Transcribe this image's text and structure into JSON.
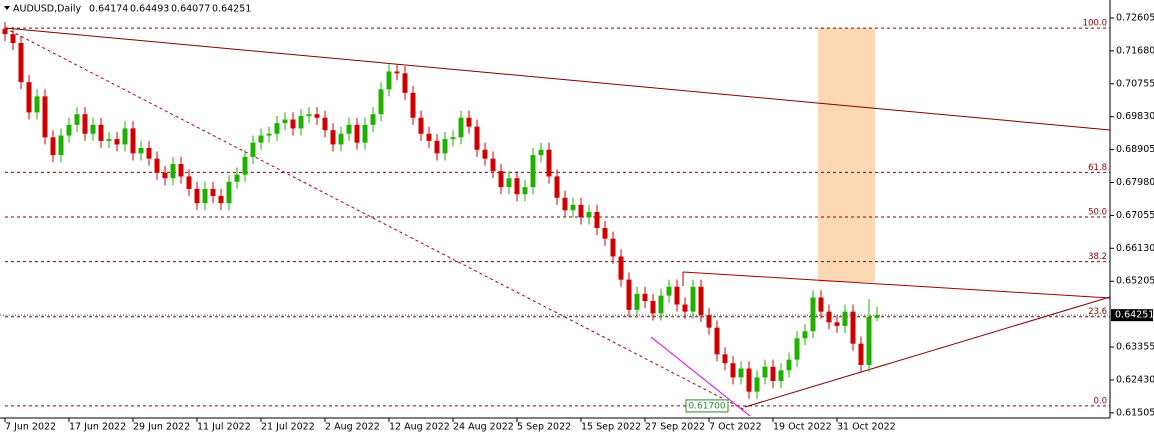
{
  "chart_data": {
    "type": "candlestick",
    "title": "AUDUSD,Daily",
    "categories": [
      "7 Jun 2022",
      null,
      null,
      null,
      null,
      null,
      null,
      null,
      "17 Jun 2022",
      null,
      null,
      null,
      null,
      null,
      null,
      null,
      "29 Jun 2022",
      null,
      null,
      null,
      null,
      null,
      null,
      null,
      "11 Jul 2022",
      null,
      null,
      null,
      null,
      null,
      null,
      null,
      "21 Jul 2022",
      null,
      null,
      null,
      null,
      null,
      null,
      null,
      "2 Aug 2022",
      null,
      null,
      null,
      null,
      null,
      null,
      null,
      "12 Aug 2022",
      null,
      null,
      null,
      null,
      null,
      null,
      null,
      "24 Aug 2022",
      null,
      null,
      null,
      null,
      null,
      null,
      null,
      "5 Sep 2022",
      null,
      null,
      null,
      null,
      null,
      null,
      null,
      "15 Sep 2022",
      null,
      null,
      null,
      null,
      null,
      null,
      null,
      "27 Sep 2022",
      null,
      null,
      null,
      null,
      null,
      null,
      null,
      "7 Oct 2022",
      null,
      null,
      null,
      null,
      null,
      null,
      null,
      "19 Oct 2022",
      null,
      null,
      null,
      null,
      null,
      null,
      null,
      "31 Oct 2022",
      null,
      null,
      null,
      null,
      null
    ],
    "open": [
      0.723,
      0.7215,
      0.719,
      0.708,
      0.6995,
      0.704,
      0.6925,
      0.6875,
      0.693,
      0.696,
      0.699,
      0.6935,
      0.696,
      0.6915,
      0.692,
      0.6905,
      0.695,
      0.688,
      0.6895,
      0.6865,
      0.6825,
      0.681,
      0.685,
      0.6815,
      0.678,
      0.674,
      0.678,
      0.676,
      0.674,
      0.68,
      0.682,
      0.687,
      0.691,
      0.693,
      0.6935,
      0.6965,
      0.6975,
      0.695,
      0.6985,
      0.699,
      0.698,
      0.6945,
      0.6905,
      0.6935,
      0.696,
      0.691,
      0.696,
      0.699,
      0.706,
      0.711,
      0.7105,
      0.705,
      0.698,
      0.6935,
      0.6915,
      0.688,
      0.692,
      0.6925,
      0.698,
      0.6955,
      0.689,
      0.6865,
      0.683,
      0.6785,
      0.681,
      0.6765,
      0.6785,
      0.6875,
      0.689,
      0.6815,
      0.6755,
      0.672,
      0.6735,
      0.67,
      0.6715,
      0.667,
      0.664,
      0.659,
      0.6525,
      0.644,
      0.6485,
      0.6465,
      0.643,
      0.648,
      0.6505,
      0.6455,
      0.6435,
      0.6505,
      0.6425,
      0.639,
      0.6315,
      0.629,
      0.625,
      0.6275,
      0.621,
      0.625,
      0.628,
      0.624,
      0.627,
      0.63,
      0.636,
      0.638,
      0.6475,
      0.6435,
      0.6405,
      0.6395,
      0.6435,
      0.6345,
      0.6285,
      0.64174
    ],
    "high": [
      0.725,
      0.7235,
      0.721,
      0.71,
      0.706,
      0.706,
      0.6945,
      0.695,
      0.698,
      0.701,
      0.701,
      0.698,
      0.698,
      0.694,
      0.694,
      0.697,
      0.697,
      0.6915,
      0.6915,
      0.6885,
      0.6845,
      0.687,
      0.687,
      0.6835,
      0.68,
      0.68,
      0.68,
      0.678,
      0.682,
      0.684,
      0.689,
      0.693,
      0.695,
      0.6955,
      0.6985,
      0.6995,
      0.6995,
      0.7005,
      0.701,
      0.701,
      0.7,
      0.6965,
      0.6955,
      0.698,
      0.698,
      0.698,
      0.701,
      0.708,
      0.713,
      0.713,
      0.7125,
      0.707,
      0.7,
      0.6955,
      0.6935,
      0.694,
      0.6945,
      0.7,
      0.7,
      0.6975,
      0.691,
      0.6885,
      0.685,
      0.683,
      0.683,
      0.6805,
      0.6895,
      0.691,
      0.691,
      0.6835,
      0.6775,
      0.6755,
      0.6755,
      0.6735,
      0.6735,
      0.669,
      0.666,
      0.661,
      0.6545,
      0.6505,
      0.6505,
      0.6485,
      0.65,
      0.6525,
      0.6525,
      0.6475,
      0.6525,
      0.6525,
      0.6445,
      0.641,
      0.6335,
      0.631,
      0.6295,
      0.6295,
      0.627,
      0.63,
      0.63,
      0.629,
      0.632,
      0.638,
      0.64,
      0.6495,
      0.6495,
      0.6455,
      0.6425,
      0.6455,
      0.6455,
      0.6365,
      0.647,
      0.64493
    ],
    "low": [
      0.7195,
      0.717,
      0.706,
      0.6975,
      0.6975,
      0.6905,
      0.6855,
      0.6855,
      0.691,
      0.694,
      0.6915,
      0.6915,
      0.6895,
      0.6895,
      0.6885,
      0.6885,
      0.686,
      0.686,
      0.6845,
      0.6805,
      0.679,
      0.679,
      0.6795,
      0.676,
      0.672,
      0.672,
      0.674,
      0.672,
      0.672,
      0.678,
      0.68,
      0.685,
      0.689,
      0.691,
      0.6915,
      0.6945,
      0.693,
      0.693,
      0.6965,
      0.696,
      0.6925,
      0.6885,
      0.6885,
      0.6915,
      0.689,
      0.689,
      0.694,
      0.697,
      0.704,
      0.7085,
      0.703,
      0.696,
      0.6915,
      0.6895,
      0.686,
      0.686,
      0.69,
      0.6905,
      0.6935,
      0.687,
      0.6845,
      0.681,
      0.6765,
      0.6765,
      0.6745,
      0.6745,
      0.6765,
      0.6855,
      0.6795,
      0.6735,
      0.67,
      0.67,
      0.668,
      0.668,
      0.665,
      0.662,
      0.657,
      0.6505,
      0.642,
      0.642,
      0.6445,
      0.641,
      0.641,
      0.646,
      0.6435,
      0.6415,
      0.6415,
      0.6405,
      0.637,
      0.6295,
      0.627,
      0.623,
      0.623,
      0.619,
      0.619,
      0.623,
      0.622,
      0.622,
      0.625,
      0.628,
      0.634,
      0.636,
      0.6415,
      0.6385,
      0.6375,
      0.6375,
      0.6325,
      0.6265,
      0.6265,
      0.64077
    ],
    "close": [
      0.7215,
      0.719,
      0.708,
      0.6995,
      0.704,
      0.6925,
      0.6875,
      0.693,
      0.696,
      0.699,
      0.6935,
      0.696,
      0.6915,
      0.692,
      0.6905,
      0.695,
      0.688,
      0.6895,
      0.6865,
      0.6825,
      0.681,
      0.685,
      0.6815,
      0.678,
      0.674,
      0.678,
      0.676,
      0.674,
      0.68,
      0.682,
      0.687,
      0.691,
      0.693,
      0.6935,
      0.6965,
      0.6975,
      0.695,
      0.6985,
      0.699,
      0.698,
      0.6945,
      0.6905,
      0.6935,
      0.696,
      0.691,
      0.696,
      0.699,
      0.706,
      0.711,
      0.7105,
      0.705,
      0.698,
      0.6935,
      0.6915,
      0.688,
      0.692,
      0.6925,
      0.698,
      0.6955,
      0.689,
      0.6865,
      0.683,
      0.6785,
      0.681,
      0.6765,
      0.6785,
      0.6875,
      0.689,
      0.6815,
      0.6755,
      0.672,
      0.6735,
      0.67,
      0.6715,
      0.667,
      0.664,
      0.659,
      0.6525,
      0.644,
      0.6485,
      0.6465,
      0.643,
      0.648,
      0.6505,
      0.6455,
      0.6435,
      0.6505,
      0.6425,
      0.639,
      0.6315,
      0.629,
      0.625,
      0.6275,
      0.621,
      0.625,
      0.628,
      0.624,
      0.627,
      0.63,
      0.636,
      0.638,
      0.6475,
      0.6435,
      0.6405,
      0.6395,
      0.6435,
      0.6345,
      0.6285,
      0.642,
      0.64251
    ],
    "up_color": "#22b000",
    "down_color": "#d00000",
    "ylim": [
      0.6136,
      0.7311
    ],
    "yticks": [
      {
        "value": 0.72605,
        "label": "0.72605"
      },
      {
        "value": 0.7168,
        "label": "0.71680"
      },
      {
        "value": 0.70755,
        "label": "0.70755"
      },
      {
        "value": 0.6983,
        "label": "0.69830"
      },
      {
        "value": 0.68905,
        "label": "0.68905"
      },
      {
        "value": 0.6798,
        "label": "0.67980"
      },
      {
        "value": 0.67055,
        "label": "0.67055"
      },
      {
        "value": 0.6613,
        "label": "0.66130"
      },
      {
        "value": 0.65205,
        "label": "0.65205"
      },
      {
        "value": 0.63355,
        "label": "0.63355"
      },
      {
        "value": 0.6243,
        "label": "0.62430"
      },
      {
        "value": 0.61505,
        "label": "0.61505"
      }
    ],
    "fibo": {
      "low": {
        "value": 0.617,
        "label": "0.61700"
      },
      "high": 0.7232,
      "levels": [
        {
          "value": 100,
          "label": "100.0"
        },
        {
          "value": 61.8,
          "label": "61.8"
        },
        {
          "value": 50,
          "label": "50.0"
        },
        {
          "value": 38.2,
          "label": "38.2"
        },
        {
          "value": 23.6,
          "label": "23.6"
        },
        {
          "value": 0,
          "label": "0.0"
        }
      ],
      "color": "#8b0000"
    }
  }
}
